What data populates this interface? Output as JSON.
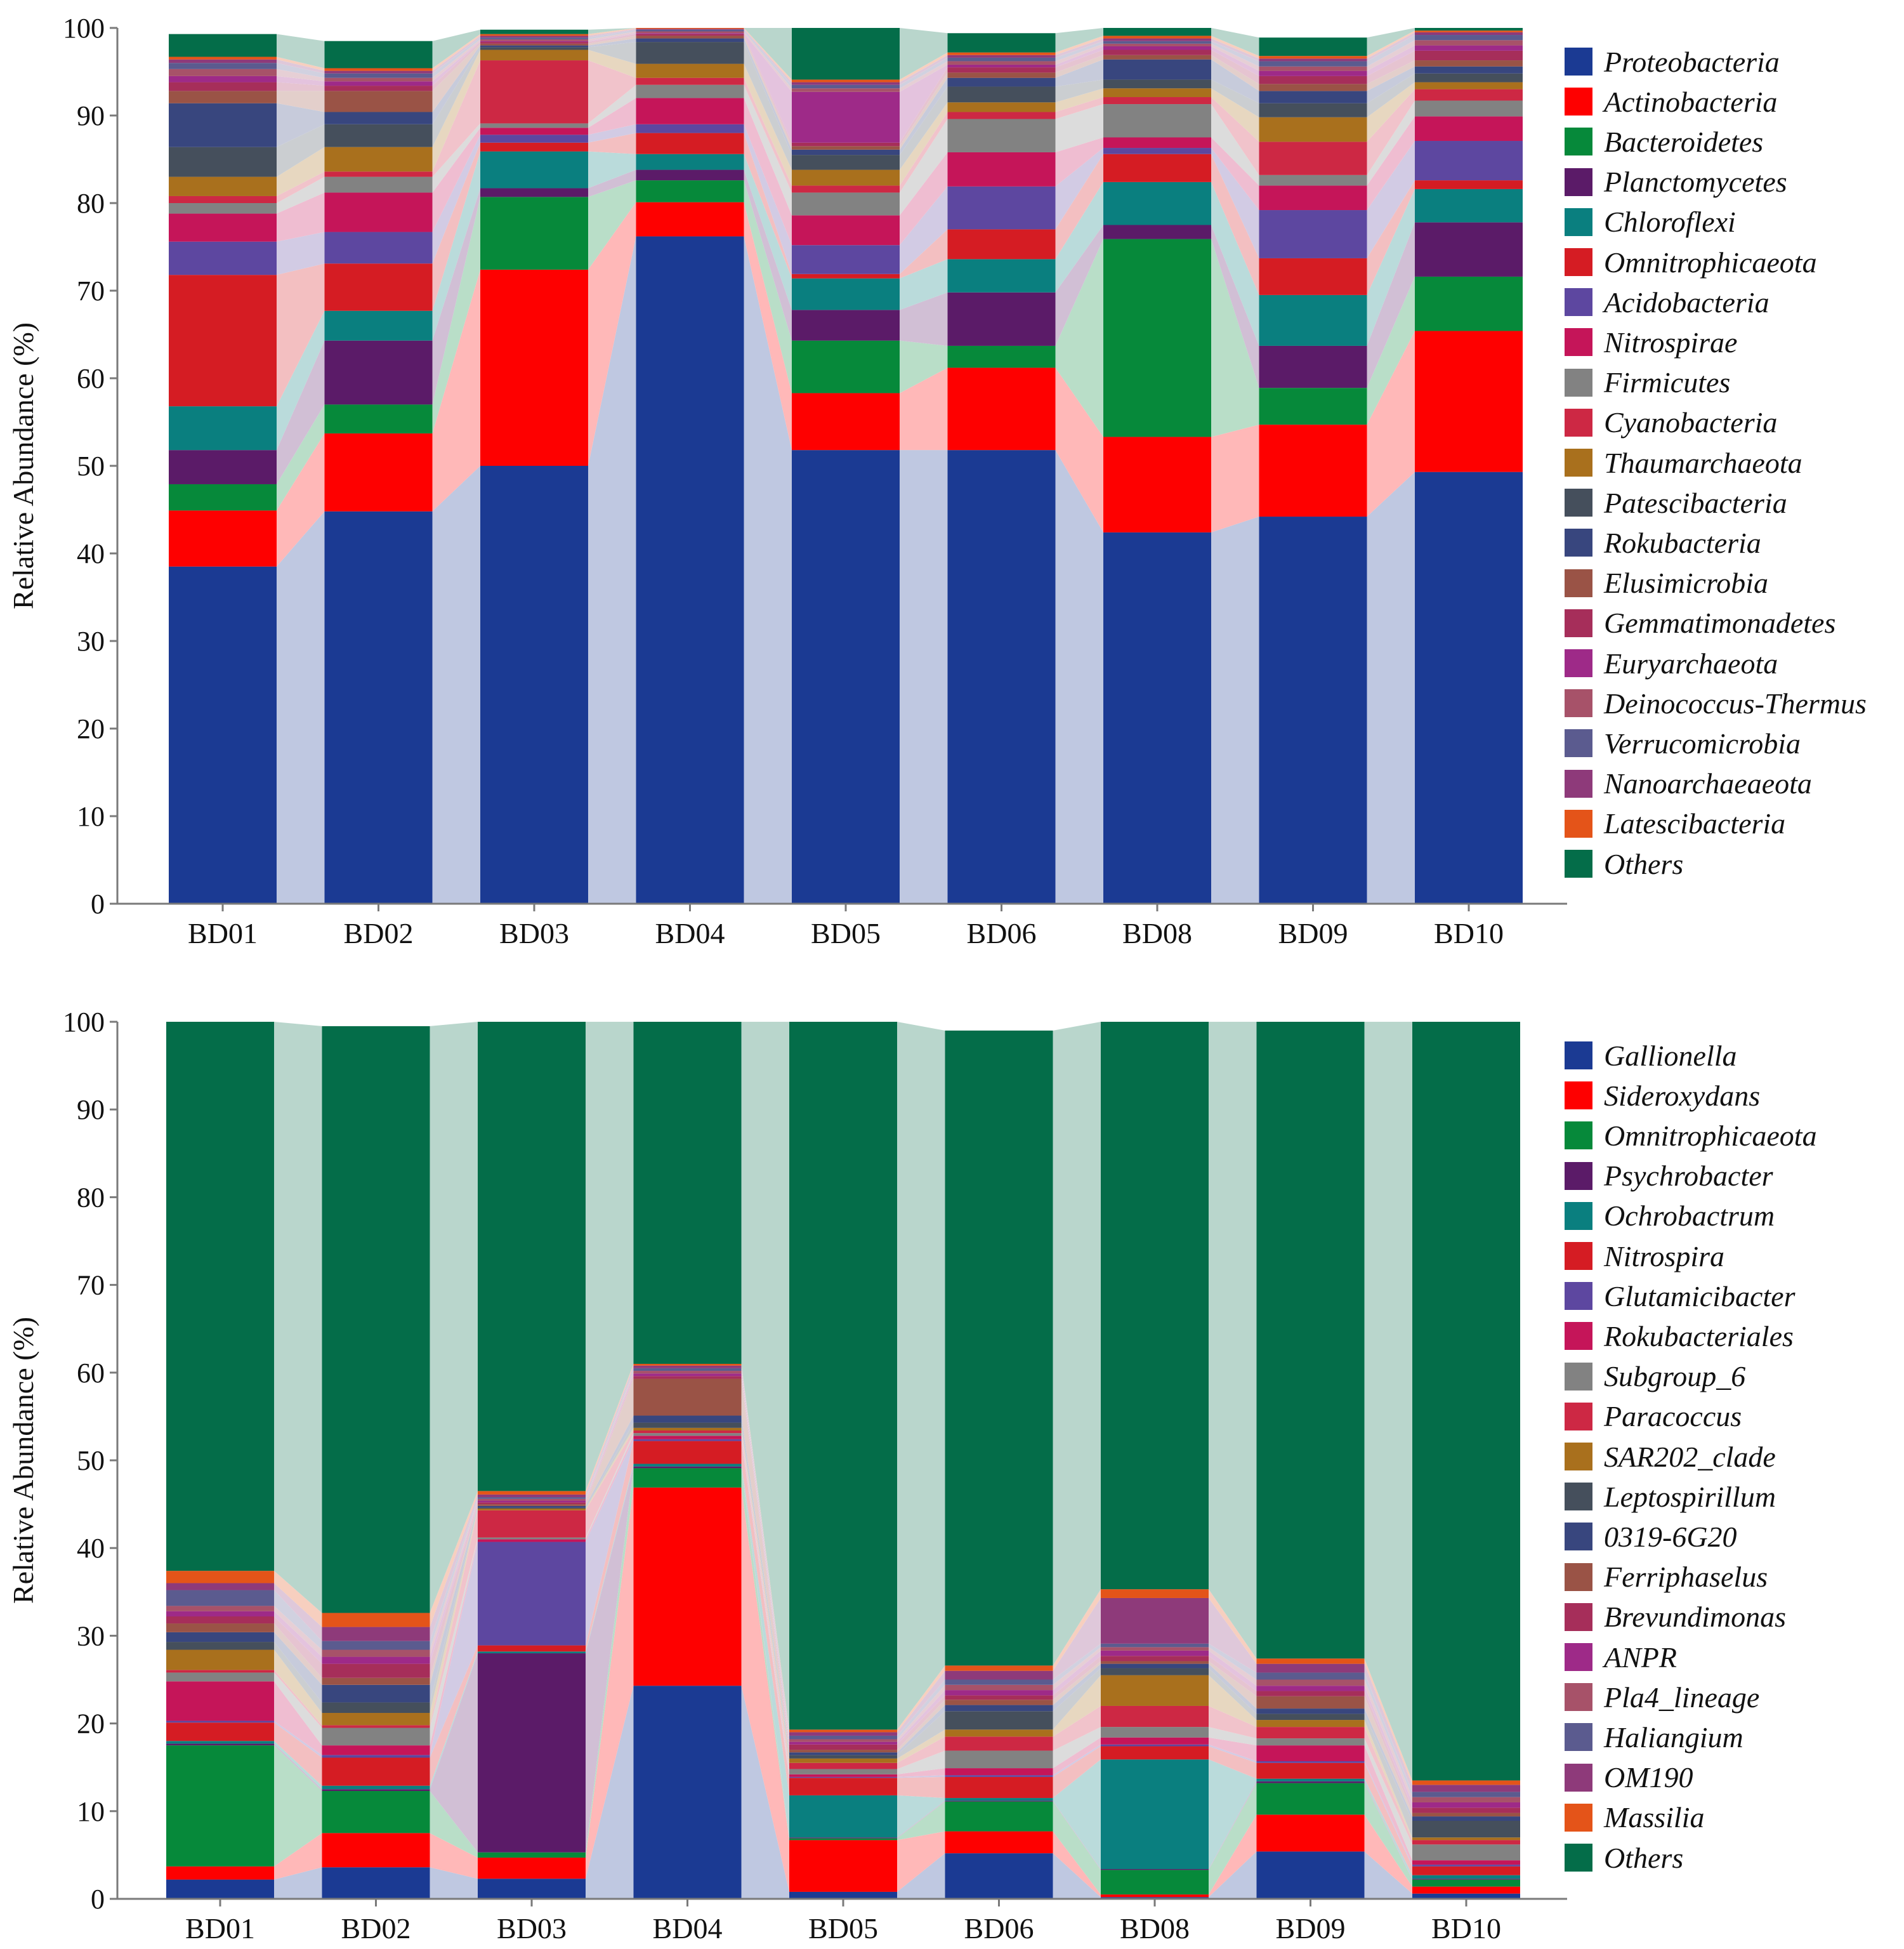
{
  "colors": {
    "Proteobacteria": "#1B3A93",
    "Actinobacteria": "#FE0000",
    "Bacteroidetes": "#06893A",
    "Planctomycetes": "#5B1B68",
    "Chloroflexi": "#0A7F7F",
    "Omnitrophicaeota": "#D51C23",
    "Acidobacteria": "#5D47A0",
    "Nitrospirae": "#C51559",
    "Firmicutes": "#828282",
    "Cyanobacteria": "#CD2844",
    "Thaumarchaeota": "#A9701D",
    "Patescibacteria": "#454F5C",
    "Rokubacteria": "#38467E",
    "Elusimicrobia": "#9A5346",
    "Gemmatimonadetes": "#A62E5A",
    "Euryarchaeota": "#9E2A88",
    "Deinococcus-Thermus": "#A75269",
    "Verrucomicrobia": "#5B5B8F",
    "Nanoarchaeaeota": "#8E3A7A",
    "Latescibacteria": "#E45419",
    "Others": "#046D49"
  },
  "chart_data": [
    {
      "type": "bar",
      "stacked": true,
      "ylabel": "Relative Abundance (%)",
      "ylim": [
        0,
        100
      ],
      "yticks": [
        "0",
        "10",
        "20",
        "30",
        "40",
        "50",
        "60",
        "70",
        "80",
        "90",
        "100"
      ],
      "categories": [
        "BD01",
        "BD02",
        "BD03",
        "BD04",
        "BD05",
        "BD06",
        "BD08",
        "BD09",
        "BD10"
      ],
      "legend_position": "right",
      "series": [
        {
          "name": "Proteobacteria",
          "color": "#1B3A93",
          "values": [
            38.5,
            44.8,
            50.0,
            76.2,
            51.8,
            51.8,
            42.4,
            44.2,
            49.3
          ]
        },
        {
          "name": "Actinobacteria",
          "color": "#FE0000",
          "values": [
            6.4,
            8.9,
            22.4,
            3.9,
            6.5,
            9.4,
            10.9,
            10.5,
            16.1
          ]
        },
        {
          "name": "Bacteroidetes",
          "color": "#06893A",
          "values": [
            3.0,
            3.3,
            8.3,
            2.5,
            6.0,
            2.5,
            22.6,
            4.2,
            6.2
          ]
        },
        {
          "name": "Planctomycetes",
          "color": "#5B1B68",
          "values": [
            3.9,
            7.3,
            1.0,
            1.2,
            3.5,
            6.1,
            1.6,
            4.8,
            6.2
          ]
        },
        {
          "name": "Chloroflexi",
          "color": "#0A7F7F",
          "values": [
            5.0,
            3.4,
            4.2,
            1.8,
            3.6,
            3.8,
            4.9,
            5.8,
            3.8
          ]
        },
        {
          "name": "Omnitrophicaeota",
          "color": "#D51C23",
          "values": [
            15.0,
            5.4,
            1.0,
            2.4,
            0.5,
            3.4,
            3.2,
            4.2,
            1.0
          ]
        },
        {
          "name": "Acidobacteria",
          "color": "#5D47A0",
          "values": [
            3.8,
            3.6,
            0.9,
            1.0,
            3.3,
            4.9,
            0.7,
            5.5,
            4.5
          ]
        },
        {
          "name": "Nitrospirae",
          "color": "#C51559",
          "values": [
            3.2,
            4.5,
            0.8,
            3.0,
            3.4,
            3.9,
            1.2,
            2.8,
            2.8
          ]
        },
        {
          "name": "Firmicutes",
          "color": "#828282",
          "values": [
            1.2,
            1.8,
            0.5,
            1.5,
            2.6,
            3.8,
            3.8,
            1.2,
            1.8
          ]
        },
        {
          "name": "Cyanobacteria",
          "color": "#CD2844",
          "values": [
            0.8,
            0.6,
            7.2,
            0.8,
            0.8,
            0.8,
            0.8,
            3.8,
            1.3
          ]
        },
        {
          "name": "Thaumarchaeota",
          "color": "#A9701D",
          "values": [
            2.2,
            2.8,
            1.2,
            1.6,
            1.8,
            1.1,
            1.0,
            2.8,
            0.8
          ]
        },
        {
          "name": "Patescibacteria",
          "color": "#454F5C",
          "values": [
            3.4,
            2.6,
            0.3,
            2.5,
            1.7,
            1.8,
            1.0,
            1.6,
            1.0
          ]
        },
        {
          "name": "Rokubacteria",
          "color": "#38467E",
          "values": [
            5.0,
            1.4,
            0.2,
            0.4,
            0.6,
            1.0,
            2.3,
            1.4,
            0.8
          ]
        },
        {
          "name": "Elusimicrobia",
          "color": "#9A5346",
          "values": [
            1.4,
            2.4,
            0.2,
            0.3,
            0.4,
            0.6,
            0.5,
            0.8,
            0.7
          ]
        },
        {
          "name": "Gemmatimonadetes",
          "color": "#A62E5A",
          "values": [
            1.0,
            0.6,
            0.2,
            0.2,
            0.4,
            0.6,
            0.6,
            0.9,
            1.1
          ]
        },
        {
          "name": "Euryarchaeota",
          "color": "#9E2A88",
          "values": [
            0.7,
            0.5,
            0.1,
            0.1,
            5.8,
            0.3,
            0.4,
            0.6,
            0.6
          ]
        },
        {
          "name": "Deinococcus-Thermus",
          "color": "#A75269",
          "values": [
            0.8,
            0.4,
            0.2,
            0.2,
            0.4,
            0.4,
            0.3,
            0.5,
            0.6
          ]
        },
        {
          "name": "Verrucomicrobia",
          "color": "#5B5B8F",
          "values": [
            0.7,
            0.5,
            0.2,
            0.2,
            0.4,
            0.4,
            0.3,
            0.6,
            0.6
          ]
        },
        {
          "name": "Nanoarchaeaeota",
          "color": "#8E3A7A",
          "values": [
            0.4,
            0.3,
            0.2,
            0.1,
            0.3,
            0.3,
            0.3,
            0.3,
            0.3
          ]
        },
        {
          "name": "Latescibacteria",
          "color": "#E45419",
          "values": [
            0.3,
            0.3,
            0.2,
            0.1,
            0.3,
            0.3,
            0.3,
            0.3,
            0.2
          ]
        },
        {
          "name": "Others",
          "color": "#046D49",
          "values": [
            2.6,
            3.1,
            0.5,
            0.2,
            6.1,
            2.2,
            1.4,
            2.1,
            1.3
          ]
        }
      ]
    },
    {
      "type": "bar",
      "stacked": true,
      "ylabel": "Relative Abundance (%)",
      "ylim": [
        0,
        100
      ],
      "yticks": [
        "0",
        "10",
        "20",
        "30",
        "40",
        "50",
        "60",
        "70",
        "80",
        "90",
        "100"
      ],
      "categories": [
        "BD01",
        "BD02",
        "BD03",
        "BD04",
        "BD05",
        "BD06",
        "BD08",
        "BD09",
        "BD10"
      ],
      "legend_position": "right",
      "series": [
        {
          "name": "Gallionella",
          "color": "#1B3A93",
          "values": [
            2.2,
            3.6,
            2.3,
            24.3,
            0.8,
            5.2,
            0.2,
            5.4,
            0.6
          ]
        },
        {
          "name": "Sideroxydans",
          "color": "#FE0000",
          "values": [
            1.5,
            3.9,
            2.4,
            22.6,
            5.9,
            2.5,
            0.3,
            4.2,
            0.8
          ]
        },
        {
          "name": "Omnitrophicaeota",
          "color": "#06893A",
          "values": [
            13.8,
            4.8,
            0.6,
            2.2,
            0.2,
            3.4,
            2.8,
            3.6,
            0.8
          ]
        },
        {
          "name": "Psychrobacter",
          "color": "#5B1B68",
          "values": [
            0.2,
            0.2,
            22.7,
            0.2,
            0.1,
            0.1,
            0.1,
            0.2,
            0.1
          ]
        },
        {
          "name": "Ochrobactrum",
          "color": "#0A7F7F",
          "values": [
            0.3,
            0.4,
            0.2,
            0.3,
            4.8,
            0.3,
            12.5,
            0.3,
            0.4
          ]
        },
        {
          "name": "Nitrospira",
          "color": "#D51C23",
          "values": [
            2.1,
            3.2,
            0.7,
            2.6,
            2.0,
            2.4,
            1.5,
            1.8,
            1.0
          ]
        },
        {
          "name": "Glutamicibacter",
          "color": "#5D47A0",
          "values": [
            0.2,
            0.3,
            11.8,
            0.2,
            0.1,
            0.2,
            0.2,
            0.2,
            0.2
          ]
        },
        {
          "name": "Rokubacteriales",
          "color": "#C51559",
          "values": [
            4.5,
            1.1,
            0.3,
            0.4,
            0.3,
            0.8,
            0.8,
            1.8,
            0.5
          ]
        },
        {
          "name": "Subgroup_6",
          "color": "#828282",
          "values": [
            1.0,
            2.0,
            0.2,
            0.3,
            0.6,
            2.0,
            1.2,
            0.8,
            1.8
          ]
        },
        {
          "name": "Paracoccus",
          "color": "#CD2844",
          "values": [
            0.3,
            0.3,
            3.1,
            0.3,
            0.7,
            1.6,
            2.4,
            1.3,
            0.5
          ]
        },
        {
          "name": "SAR202_clade",
          "color": "#A9701D",
          "values": [
            2.3,
            1.4,
            0.2,
            0.3,
            0.5,
            0.8,
            3.5,
            0.8,
            0.3
          ]
        },
        {
          "name": "Leptospirillum",
          "color": "#454F5C",
          "values": [
            0.9,
            1.2,
            0.1,
            0.6,
            0.4,
            2.1,
            0.8,
            0.7,
            1.9
          ]
        },
        {
          "name": "0319-6G20",
          "color": "#38467E",
          "values": [
            1.1,
            2.0,
            0.2,
            0.8,
            0.3,
            0.7,
            0.5,
            0.6,
            0.5
          ]
        },
        {
          "name": "Ferriphaselus",
          "color": "#9A5346",
          "values": [
            1.0,
            0.8,
            0.2,
            4.2,
            0.3,
            0.6,
            0.3,
            1.4,
            0.4
          ]
        },
        {
          "name": "Brevundimonas",
          "color": "#A62E5A",
          "values": [
            0.8,
            1.6,
            0.2,
            0.3,
            0.6,
            0.5,
            0.6,
            0.6,
            0.6
          ]
        },
        {
          "name": "ANPR",
          "color": "#9E2A88",
          "values": [
            0.6,
            0.8,
            0.2,
            0.3,
            0.3,
            0.6,
            0.6,
            0.6,
            0.6
          ]
        },
        {
          "name": "Pla4_lineage",
          "color": "#A75269",
          "values": [
            0.6,
            0.8,
            0.2,
            0.3,
            0.3,
            0.6,
            0.4,
            0.7,
            0.6
          ]
        },
        {
          "name": "Haliangium",
          "color": "#5B5B8F",
          "values": [
            1.8,
            1.0,
            0.2,
            0.3,
            0.4,
            0.6,
            0.4,
            0.8,
            0.6
          ]
        },
        {
          "name": "OM190",
          "color": "#8E3A7A",
          "values": [
            0.8,
            1.6,
            0.3,
            0.3,
            0.4,
            1.0,
            5.2,
            1.0,
            0.8
          ]
        },
        {
          "name": "Massilia",
          "color": "#E45419",
          "values": [
            1.4,
            1.6,
            0.4,
            0.2,
            0.3,
            0.6,
            1.0,
            0.6,
            0.5
          ]
        },
        {
          "name": "Others",
          "color": "#046D49",
          "values": [
            62.8,
            66.9,
            54.3,
            39.4,
            80.7,
            72.4,
            64.7,
            72.6,
            86.5
          ]
        }
      ]
    }
  ]
}
